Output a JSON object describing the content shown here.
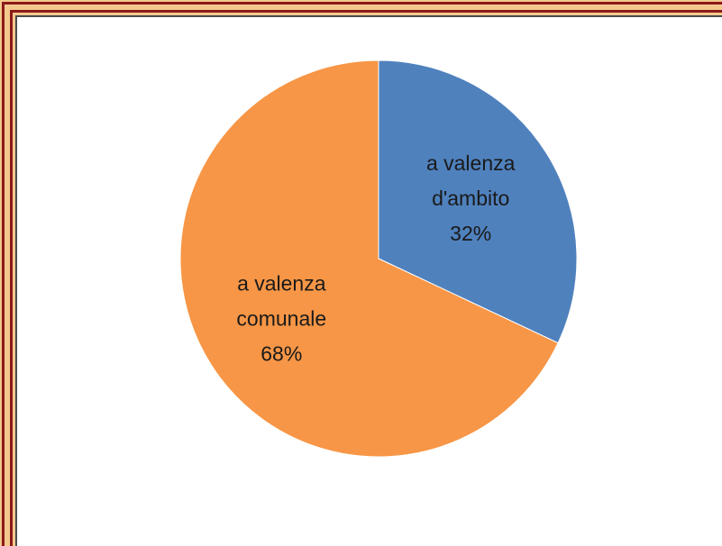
{
  "chart_data": {
    "type": "pie",
    "title": "",
    "slices": [
      {
        "label_lines": [
          "a valenza",
          "d'ambito",
          "32%"
        ],
        "category": "a valenza d'ambito",
        "value": 32,
        "color": "#4f81bd"
      },
      {
        "label_lines": [
          "a valenza",
          "comunale",
          "68%"
        ],
        "category": "a valenza comunale",
        "value": 68,
        "color": "#f79646"
      }
    ],
    "start_angle": "12 o'clock",
    "direction": "clockwise",
    "legend": "none",
    "data_labels": "inside"
  },
  "colors": {
    "frame_background": "#f4c98e",
    "frame_line": "#8b1a1a",
    "plot_background": "#ffffff"
  }
}
